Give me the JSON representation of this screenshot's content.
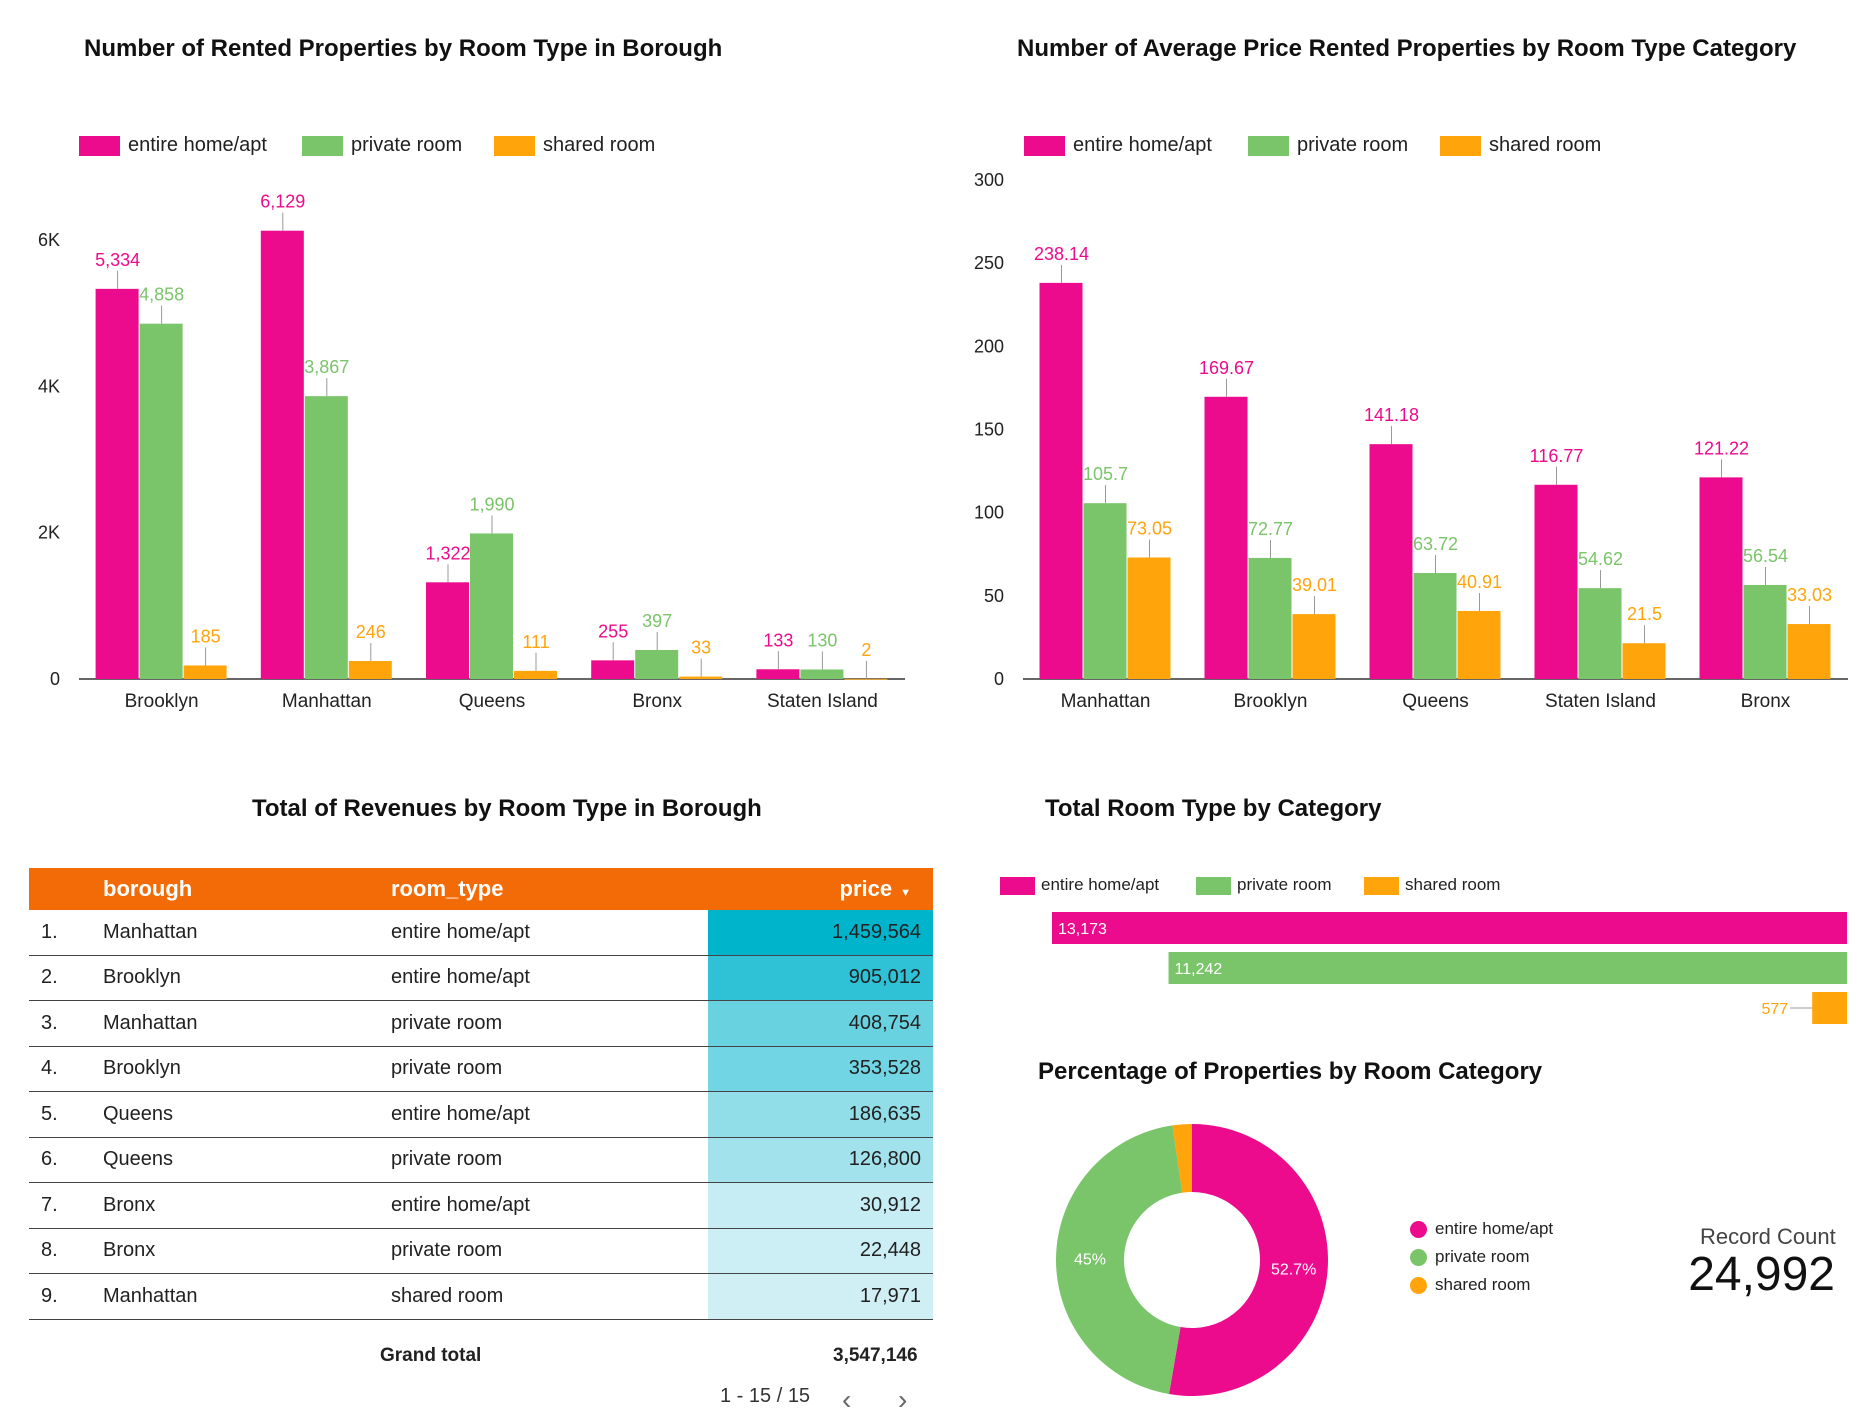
{
  "colors": {
    "entire": "#ec0b8d",
    "private": "#7ac46a",
    "shared": "#ffa40b",
    "header": "#f26b06"
  },
  "charts": {
    "top_left_title": "Number of Rented Properties by Room Type in Borough",
    "top_right_title": "Number of Average Price Rented Properties by Room Type Category",
    "table_title": "Total of Revenues by Room Type in Borough",
    "hbar_title": "Total Room Type by Category",
    "donut_title": "Percentage of Properties by Room Category"
  },
  "legend": [
    "entire home/apt",
    "private room",
    "shared room"
  ],
  "chart_data": [
    {
      "type": "bar",
      "title": "Number of Rented Properties by Room Type in Borough",
      "categories": [
        "Brooklyn",
        "Manhattan",
        "Queens",
        "Bronx",
        "Staten Island"
      ],
      "series": [
        {
          "name": "entire home/apt",
          "values": [
            5334,
            6129,
            1322,
            255,
            133
          ],
          "labels": [
            "5,334",
            "6,129",
            "1,322",
            "255",
            "133"
          ]
        },
        {
          "name": "private room",
          "values": [
            4858,
            3867,
            1990,
            397,
            130
          ],
          "labels": [
            "4,858",
            "3,867",
            "1,990",
            "397",
            "130"
          ]
        },
        {
          "name": "shared room",
          "values": [
            185,
            246,
            111,
            33,
            2
          ],
          "labels": [
            "185",
            "246",
            "111",
            "33",
            "2"
          ]
        }
      ],
      "ylim": [
        0,
        7000
      ],
      "yticks": [
        0,
        2000,
        4000,
        6000
      ],
      "ytick_labels": [
        "0",
        "2K",
        "4K",
        "6K"
      ],
      "legend_position": "top-left"
    },
    {
      "type": "bar",
      "title": "Number of Average Price Rented Properties by Room Type Category",
      "categories": [
        "Manhattan",
        "Brooklyn",
        "Queens",
        "Staten Island",
        "Bronx"
      ],
      "series": [
        {
          "name": "entire home/apt",
          "values": [
            238.14,
            169.67,
            141.18,
            116.77,
            121.22
          ],
          "labels": [
            "238.14",
            "169.67",
            "141.18",
            "116.77",
            "121.22"
          ]
        },
        {
          "name": "private room",
          "values": [
            105.7,
            72.77,
            63.72,
            54.62,
            56.54
          ],
          "labels": [
            "105.7",
            "72.77",
            "63.72",
            "54.62",
            "56.54"
          ]
        },
        {
          "name": "shared room",
          "values": [
            73.05,
            39.01,
            40.91,
            21.5,
            33.03
          ],
          "labels": [
            "73.05",
            "39.01",
            "40.91",
            "21.5",
            "33.03"
          ]
        }
      ],
      "ylim": [
        0,
        300
      ],
      "yticks": [
        0,
        50,
        100,
        150,
        200,
        250,
        300
      ],
      "ytick_labels": [
        "0",
        "50",
        "100",
        "150",
        "200",
        "250",
        "300"
      ],
      "legend_position": "top-left"
    },
    {
      "type": "table",
      "title": "Total of Revenues by Room Type in Borough",
      "columns": [
        "borough",
        "room_type",
        "price"
      ],
      "rows": [
        {
          "idx": "1.",
          "borough": "Manhattan",
          "room_type": "entire home/apt",
          "price": "1,459,564",
          "value": 1459564
        },
        {
          "idx": "2.",
          "borough": "Brooklyn",
          "room_type": "entire home/apt",
          "price": "905,012",
          "value": 905012
        },
        {
          "idx": "3.",
          "borough": "Manhattan",
          "room_type": "private room",
          "price": "408,754",
          "value": 408754
        },
        {
          "idx": "4.",
          "borough": "Brooklyn",
          "room_type": "private room",
          "price": "353,528",
          "value": 353528
        },
        {
          "idx": "5.",
          "borough": "Queens",
          "room_type": "entire home/apt",
          "price": "186,635",
          "value": 186635
        },
        {
          "idx": "6.",
          "borough": "Queens",
          "room_type": "private room",
          "price": "126,800",
          "value": 126800
        },
        {
          "idx": "7.",
          "borough": "Bronx",
          "room_type": "entire home/apt",
          "price": "30,912",
          "value": 30912
        },
        {
          "idx": "8.",
          "borough": "Bronx",
          "room_type": "private room",
          "price": "22,448",
          "value": 22448
        },
        {
          "idx": "9.",
          "borough": "Manhattan",
          "room_type": "shared room",
          "price": "17,971",
          "value": 17971
        }
      ],
      "grand_total_label": "Grand total",
      "grand_total": "3,547,146",
      "pagination": "1 - 15 / 15"
    },
    {
      "type": "bar",
      "orientation": "horizontal",
      "title": "Total Room Type by Category",
      "categories": [
        "entire home/apt",
        "private room",
        "shared room"
      ],
      "values": [
        13173,
        11242,
        577
      ],
      "labels": [
        "13,173",
        "11,242",
        "577"
      ],
      "legend_position": "top-left"
    },
    {
      "type": "pie",
      "title": "Percentage of Properties by Room Category",
      "donut": true,
      "categories": [
        "entire home/apt",
        "private room",
        "shared room"
      ],
      "values": [
        52.7,
        45,
        2.3
      ],
      "labels": [
        "52.7%",
        "45%",
        ""
      ],
      "legend_position": "right"
    }
  ],
  "record_count": {
    "label": "Record Count",
    "value": "24,992"
  }
}
